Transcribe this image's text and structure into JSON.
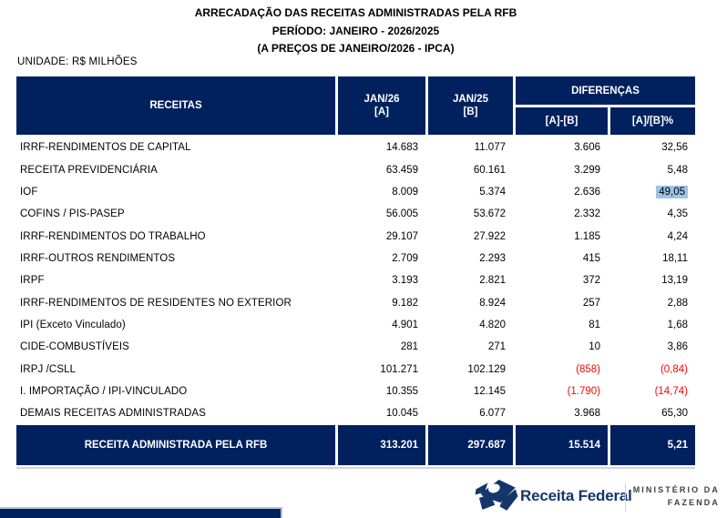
{
  "page": {
    "title_line1": "ARRECADAÇÃO DAS RECEITAS ADMINISTRADAS PELA RFB",
    "title_line2": "PERÍODO: JANEIRO - 2026/2025",
    "title_line3": "(A PREÇOS DE JANEIRO/2026 - IPCA)",
    "unit_label": "UNIDADE: R$ MILHÕES"
  },
  "table": {
    "header": {
      "receitas": "RECEITAS",
      "col_a_line1": "JAN/26",
      "col_a_line2": "[A]",
      "col_b_line1": "JAN/25",
      "col_b_line2": "[B]",
      "diferencas": "DIFERENÇAS",
      "diff_abs": "[A]-[B]",
      "diff_pct": "[A]/[B]%"
    },
    "rows": [
      {
        "name": "IRRF-RENDIMENTOS DE CAPITAL",
        "a": "14.683",
        "b": "11.077",
        "diff": "3.606",
        "pct": "32,56",
        "negative": false,
        "highlight": false
      },
      {
        "name": "RECEITA PREVIDENCIÁRIA",
        "a": "63.459",
        "b": "60.161",
        "diff": "3.299",
        "pct": "5,48",
        "negative": false,
        "highlight": false
      },
      {
        "name": "IOF",
        "a": "8.009",
        "b": "5.374",
        "diff": "2.636",
        "pct": "49,05",
        "negative": false,
        "highlight": true
      },
      {
        "name": "COFINS / PIS-PASEP",
        "a": "56.005",
        "b": "53.672",
        "diff": "2.332",
        "pct": "4,35",
        "negative": false,
        "highlight": false
      },
      {
        "name": "IRRF-RENDIMENTOS DO TRABALHO",
        "a": "29.107",
        "b": "27.922",
        "diff": "1.185",
        "pct": "4,24",
        "negative": false,
        "highlight": false
      },
      {
        "name": "IRRF-OUTROS RENDIMENTOS",
        "a": "2.709",
        "b": "2.293",
        "diff": "415",
        "pct": "18,11",
        "negative": false,
        "highlight": false
      },
      {
        "name": "IRPF",
        "a": "3.193",
        "b": "2.821",
        "diff": "372",
        "pct": "13,19",
        "negative": false,
        "highlight": false
      },
      {
        "name": "IRRF-RENDIMENTOS DE RESIDENTES NO EXTERIOR",
        "a": "9.182",
        "b": "8.924",
        "diff": "257",
        "pct": "2,88",
        "negative": false,
        "highlight": false
      },
      {
        "name": "IPI (Exceto Vinculado)",
        "a": "4.901",
        "b": "4.820",
        "diff": "81",
        "pct": "1,68",
        "negative": false,
        "highlight": false
      },
      {
        "name": "CIDE-COMBUSTÍVEIS",
        "a": "281",
        "b": "271",
        "diff": "10",
        "pct": "3,86",
        "negative": false,
        "highlight": false
      },
      {
        "name": "IRPJ /CSLL",
        "a": "101.271",
        "b": "102.129",
        "diff": "(858)",
        "pct": "(0,84)",
        "negative": true,
        "highlight": false
      },
      {
        "name": "I. IMPORTAÇÃO / IPI-VINCULADO",
        "a": "10.355",
        "b": "12.145",
        "diff": "(1.790)",
        "pct": "(14,74)",
        "negative": true,
        "highlight": false
      },
      {
        "name": "DEMAIS RECEITAS ADMINISTRADAS",
        "a": "10.045",
        "b": "6.077",
        "diff": "3.968",
        "pct": "65,30",
        "negative": false,
        "highlight": false
      }
    ],
    "total": {
      "name": "RECEITA ADMINISTRADA PELA RFB",
      "a": "313.201",
      "b": "297.687",
      "diff": "15.514",
      "pct": "5,21"
    }
  },
  "footer": {
    "brand": "Receita Federal",
    "ministry_line1": "MINISTÉRIO DA",
    "ministry_line2": "FAZENDA"
  },
  "colors": {
    "navy": "#01215E",
    "negative": "#FF0000",
    "highlight": "#9DC3E6",
    "brand_navy": "#14366B"
  }
}
